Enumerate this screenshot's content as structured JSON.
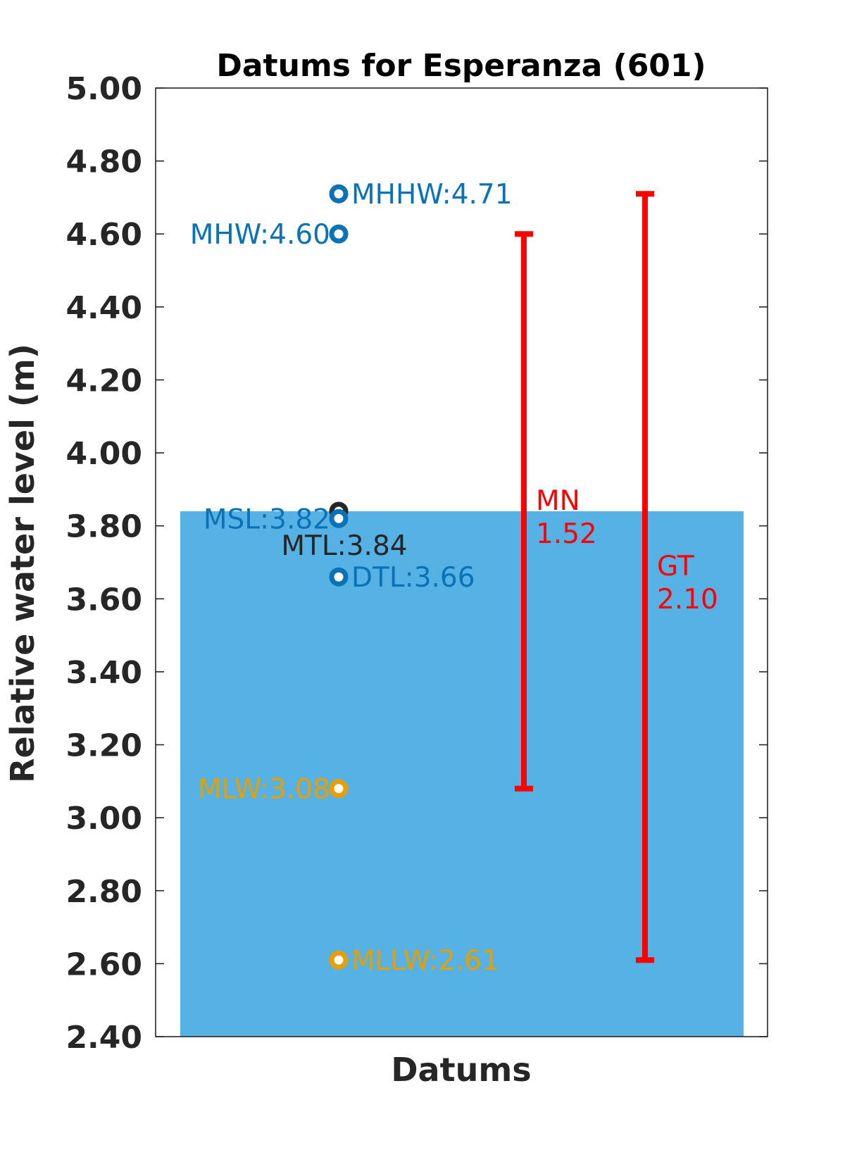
{
  "chart_data": {
    "type": "scatter",
    "title": "Datums for Esperanza (601)",
    "xlabel": "Datums",
    "ylabel": "Relative water level (m)",
    "ylim": [
      2.4,
      5.0
    ],
    "yticks": [
      "2.40",
      "2.60",
      "2.80",
      "3.00",
      "3.20",
      "3.40",
      "3.60",
      "3.80",
      "4.00",
      "4.20",
      "4.40",
      "4.60",
      "4.80",
      "5.00"
    ],
    "grid": false,
    "mean_sea_level_fill": {
      "from": 2.4,
      "to": 3.84,
      "color": "#56B1E5"
    },
    "points": [
      {
        "name": "MHHW",
        "value": 4.71,
        "label": "MHHW:4.71",
        "color": "#0B72B5",
        "label_side": "right"
      },
      {
        "name": "MHW",
        "value": 4.6,
        "label": "MHW:4.60",
        "color": "#0B72B5",
        "label_side": "left"
      },
      {
        "name": "MTL",
        "value": 3.84,
        "label": "MTL:3.84",
        "color": "#262626",
        "label_side": "below"
      },
      {
        "name": "MSL",
        "value": 3.82,
        "label": "MSL:3.82",
        "color": "#0B72B5",
        "label_side": "left"
      },
      {
        "name": "DTL",
        "value": 3.66,
        "label": "DTL:3.66",
        "color": "#0B72B5",
        "label_side": "right"
      },
      {
        "name": "MLW",
        "value": 3.08,
        "label": "MLW:3.08",
        "color": "#E69F00",
        "label_side": "left"
      },
      {
        "name": "MLLW",
        "value": 2.61,
        "label": "MLLW:2.61",
        "color": "#E69F00",
        "label_side": "right"
      }
    ],
    "ranges": [
      {
        "name": "MN",
        "low": 3.08,
        "high": 4.6,
        "value_text": "1.52",
        "color": "#FF0000"
      },
      {
        "name": "GT",
        "low": 2.61,
        "high": 4.71,
        "value_text": "2.10",
        "color": "#FF0000"
      }
    ]
  }
}
